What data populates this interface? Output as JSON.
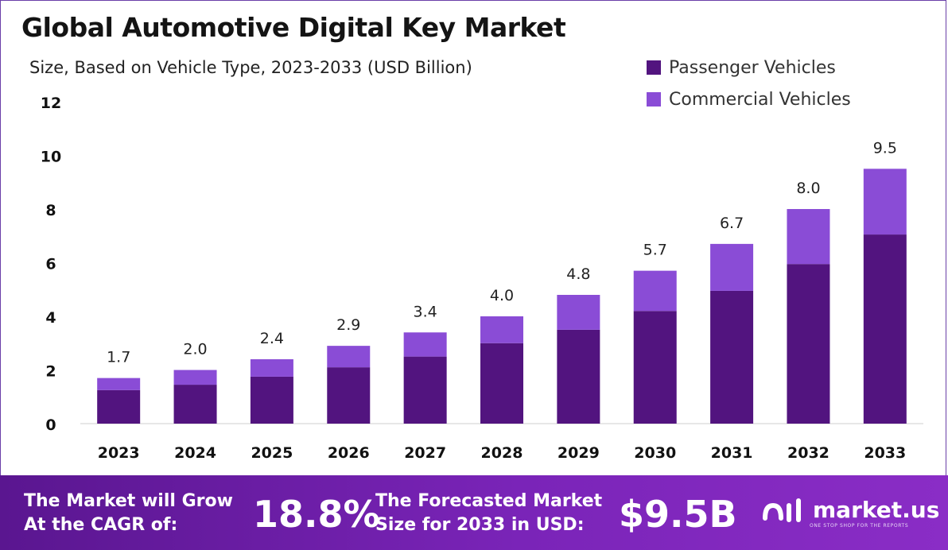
{
  "header": {
    "title": "Global Automotive Digital Key Market",
    "subtitle": "Size, Based on Vehicle Type, 2023-2033 (USD Billion)"
  },
  "legend": {
    "passenger": "Passenger Vehicles",
    "commercial": "Commercial Vehicles"
  },
  "colors": {
    "passenger": "#52147f",
    "commercial": "#8a4cd6",
    "footer_start": "#5a1690",
    "footer_end": "#8a2dc6"
  },
  "chart_data": {
    "type": "bar",
    "stacked": true,
    "categories": [
      "2023",
      "2024",
      "2025",
      "2026",
      "2027",
      "2028",
      "2029",
      "2030",
      "2031",
      "2032",
      "2033"
    ],
    "series": [
      {
        "name": "Passenger Vehicles",
        "values": [
          1.25,
          1.45,
          1.75,
          2.1,
          2.5,
          3.0,
          3.5,
          4.2,
          4.95,
          5.95,
          7.05
        ]
      },
      {
        "name": "Commercial Vehicles",
        "values": [
          0.45,
          0.55,
          0.65,
          0.8,
          0.9,
          1.0,
          1.3,
          1.5,
          1.75,
          2.05,
          2.45
        ]
      }
    ],
    "totals": [
      "1.7",
      "2.0",
      "2.4",
      "2.9",
      "3.4",
      "4.0",
      "4.8",
      "5.7",
      "6.7",
      "8.0",
      "9.5"
    ],
    "yticks": [
      0,
      2,
      4,
      6,
      8,
      10,
      12
    ],
    "ylim": [
      0,
      12
    ],
    "legend_position": "top-right",
    "grid": false
  },
  "footer": {
    "cagr_line1": "The Market will Grow",
    "cagr_line2": "At the CAGR of:",
    "cagr_value": "18.8%",
    "forecast_line1": "The Forecasted Market",
    "forecast_line2": "Size for 2033 in USD:",
    "forecast_value": "$9.5B",
    "brand": "market.us",
    "tagline": "ONE STOP SHOP FOR THE REPORTS"
  }
}
